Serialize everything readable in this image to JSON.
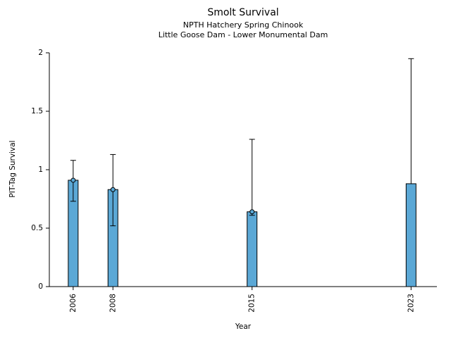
{
  "chart_data": {
    "type": "bar",
    "title": "Smolt Survival",
    "subtitle1": "NPTH Hatchery Spring Chinook",
    "subtitle2": "Little Goose Dam - Lower Monumental Dam",
    "xlabel": "Year",
    "ylabel": "PIT-Tag Survival",
    "ylim": [
      0,
      2
    ],
    "yticks": [
      0,
      0.5,
      1,
      1.5,
      2
    ],
    "ytick_labels": [
      "0",
      "0.5",
      "1",
      "1.5",
      "2"
    ],
    "xlim": [
      2004.8,
      2024.3
    ],
    "categories": [
      "2006",
      "2008",
      "2015",
      "2023"
    ],
    "years": [
      2006,
      2008,
      2015,
      2023
    ],
    "values": [
      0.91,
      0.83,
      0.64,
      0.88
    ],
    "error_low": [
      0.73,
      0.52,
      0.61,
      null
    ],
    "error_high": [
      1.08,
      1.13,
      1.26,
      1.95
    ],
    "marker": [
      true,
      true,
      true,
      false
    ],
    "bar_color": "#5BA8D6",
    "bar_edge_color": "#000000",
    "axis_color": "#000000",
    "grid": false,
    "legend": "none"
  }
}
